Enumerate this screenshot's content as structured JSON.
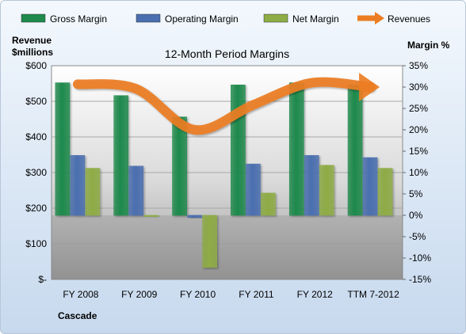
{
  "chart_data": {
    "type": "bar",
    "title": "12-Month Period Margins",
    "y_left_label_line1": "Revenue",
    "y_left_label_line2": "$millions",
    "y_right_label": "Margin %",
    "company_label": "Cascade",
    "categories": [
      "FY 2008",
      "FY 2009",
      "FY 2010",
      "FY 2011",
      "FY 2012",
      "TTM 7-2012"
    ],
    "series": [
      {
        "name": "Gross Margin",
        "color": "#1e8a4c",
        "values": [
          31,
          28,
          23,
          30.5,
          31,
          30.5
        ]
      },
      {
        "name": "Operating Margin",
        "color": "#4a6fb0",
        "values": [
          14,
          11.5,
          -0.5,
          12,
          14,
          13.5
        ]
      },
      {
        "name": "Net Margin",
        "color": "#8eac45",
        "values": [
          11,
          -0.3,
          -12.2,
          5.2,
          11.7,
          11
        ]
      }
    ],
    "revenue": {
      "name": "Revenues",
      "color": "#ec7d22",
      "values": [
        548,
        535,
        420,
        490,
        552,
        540
      ]
    },
    "y_left": {
      "min": 0,
      "max": 600,
      "ticks": [
        "$-",
        "$100",
        "$200",
        "$300",
        "$400",
        "$500",
        "$600"
      ]
    },
    "y_right": {
      "min": -15,
      "max": 35,
      "ticks": [
        "-15%",
        "-10%",
        "-5%",
        "0%",
        "5%",
        "10%",
        "15%",
        "20%",
        "25%",
        "30%",
        "35%"
      ]
    },
    "legend_position": "top"
  }
}
